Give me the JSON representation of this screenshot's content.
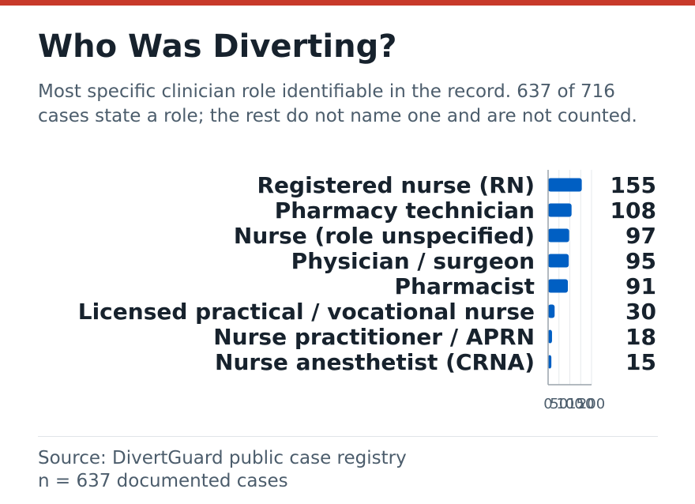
{
  "header": {
    "title": "Who Was Diverting?",
    "subtitle": "Most specific clinician role identifiable in the record. 637 of 716 cases state a role; the rest do not name one and are not counted."
  },
  "footer": {
    "source": "Source: DivertGuard public case registry",
    "note": "n = 637 documented cases"
  },
  "colors": {
    "accent": "#c83a2a",
    "bar": "#005fc3",
    "text": "#17222d",
    "muted": "#4c5d6c"
  },
  "chart_data": {
    "type": "bar",
    "orientation": "horizontal",
    "categories": [
      "Registered nurse (RN)",
      "Pharmacy technician",
      "Nurse (role unspecified)",
      "Physician / surgeon",
      "Pharmacist",
      "Licensed practical / vocational nurse",
      "Nurse practitioner / APRN",
      "Nurse anesthetist (CRNA)"
    ],
    "values": [
      155,
      108,
      97,
      95,
      91,
      30,
      18,
      15
    ],
    "value_labels": [
      "155",
      "108",
      "97",
      "95",
      "91",
      "30",
      "18",
      "15"
    ],
    "xlim": [
      0,
      200
    ],
    "xticks": [
      0,
      50,
      100,
      150,
      200
    ],
    "xtick_labels": [
      "0",
      "50",
      "100",
      "150",
      "200"
    ],
    "grid": true,
    "title": "",
    "xlabel": "",
    "ylabel": ""
  }
}
